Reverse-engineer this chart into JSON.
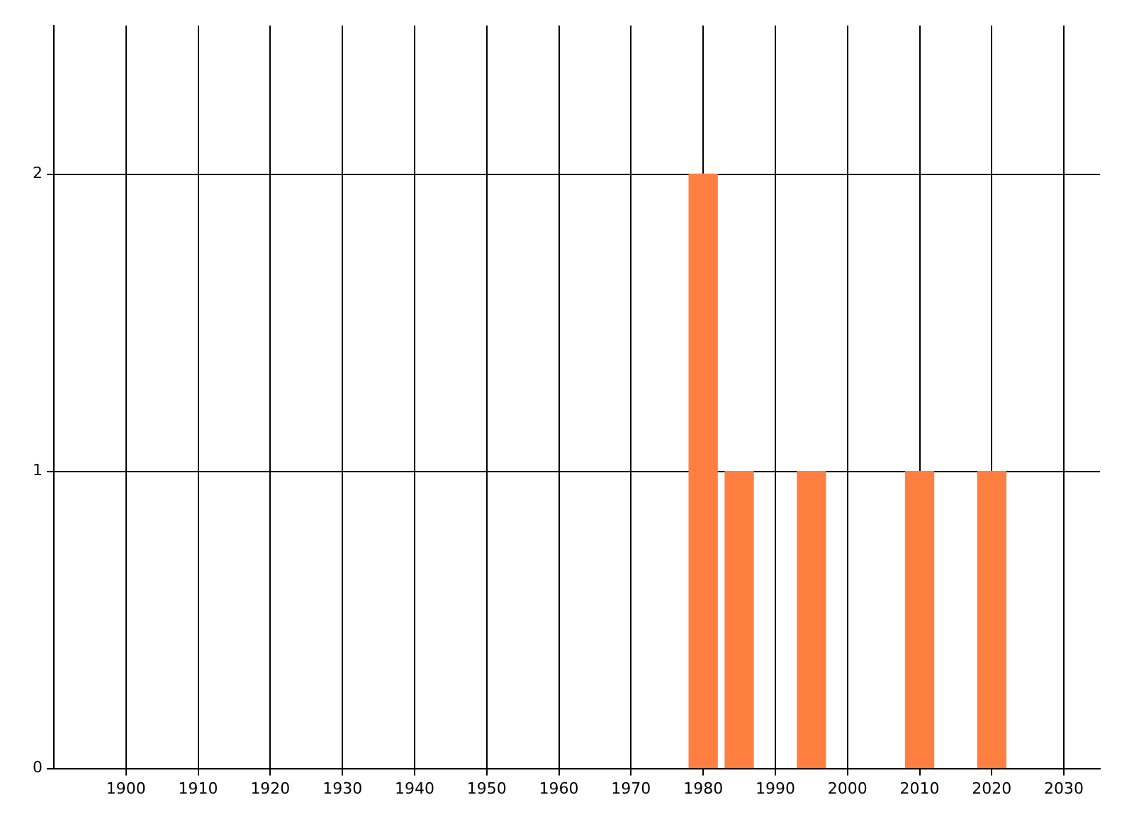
{
  "chart_data": {
    "type": "bar",
    "x": [
      1980,
      1985,
      1995,
      2010,
      2020
    ],
    "values": [
      2,
      1,
      1,
      1,
      1
    ],
    "color": "#ff7f41",
    "xlim": [
      1890,
      2035
    ],
    "xticks": [
      1900,
      1910,
      1920,
      1930,
      1940,
      1950,
      1960,
      1970,
      1980,
      1990,
      2000,
      2010,
      2020,
      2030
    ],
    "ylim": [
      0,
      2.5
    ],
    "yticks": [
      0,
      1,
      2
    ],
    "grid": true,
    "legend": false
  }
}
